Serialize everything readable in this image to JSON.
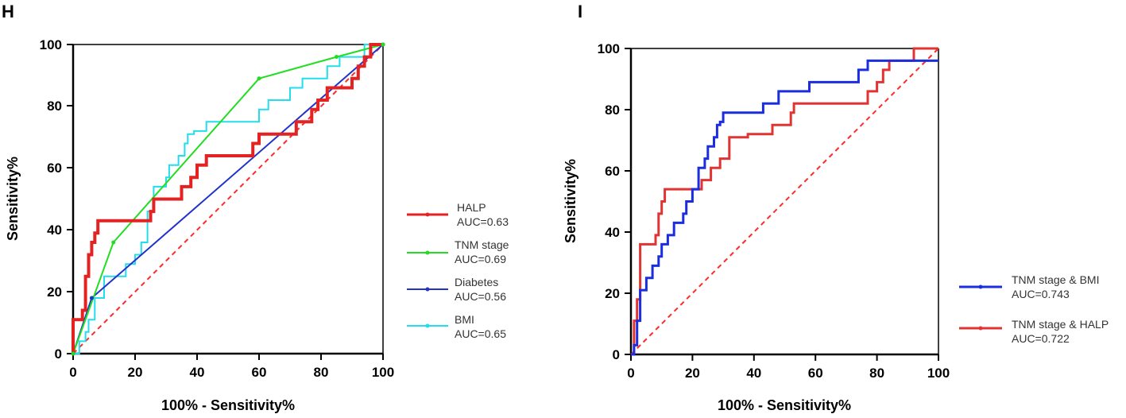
{
  "chart_data": [
    {
      "type": "line",
      "panel": "H",
      "title": "",
      "xlabel": "100% - Sensitivity%",
      "ylabel": "Sensitivity%",
      "xlim": [
        0,
        100
      ],
      "ylim": [
        0,
        100
      ],
      "xticks": [
        "0",
        "20",
        "40",
        "60",
        "80",
        "100"
      ],
      "yticks": [
        "0",
        "20",
        "40",
        "60",
        "80",
        "100"
      ],
      "grid": false,
      "legend_position": "right",
      "reference_line": {
        "color": "#ff2a2a",
        "style": "dashed",
        "x": [
          0,
          100
        ],
        "y": [
          0,
          100
        ]
      },
      "series": [
        {
          "name": "HALP",
          "auc_label": "AUC=0.63",
          "color": "#e32222",
          "width": 4,
          "x": [
            0,
            0,
            3,
            3,
            4,
            4,
            5,
            5,
            6,
            6,
            7,
            7,
            8,
            8,
            25,
            25,
            26,
            26,
            35,
            35,
            38,
            38,
            40,
            40,
            43,
            43,
            58,
            58,
            60,
            60,
            72,
            72,
            77,
            77,
            79,
            79,
            82,
            82,
            90,
            90,
            92,
            92,
            94,
            94,
            96,
            96,
            100
          ],
          "y": [
            0,
            11,
            11,
            14,
            14,
            25,
            25,
            32,
            32,
            36,
            36,
            39,
            39,
            43,
            43,
            46,
            46,
            50,
            50,
            54,
            54,
            57,
            57,
            61,
            61,
            64,
            64,
            68,
            68,
            71,
            71,
            75,
            75,
            79,
            79,
            82,
            82,
            86,
            86,
            89,
            89,
            93,
            93,
            96,
            96,
            100,
            100
          ]
        },
        {
          "name": "TNM stage",
          "auc_label": "AUC=0.69",
          "color": "#22dd22",
          "width": 2,
          "x": [
            0,
            13,
            60,
            85,
            100
          ],
          "y": [
            0,
            36,
            89,
            96,
            100
          ],
          "markers": true
        },
        {
          "name": "Diabetes",
          "auc_label": "AUC=0.56",
          "color": "#2233cc",
          "width": 2,
          "x": [
            0,
            6,
            100
          ],
          "y": [
            0,
            18,
            100
          ],
          "markers": true
        },
        {
          "name": "BMI",
          "auc_label": "AUC=0.65",
          "color": "#22ddee",
          "width": 2,
          "x": [
            0,
            2,
            2,
            4,
            4,
            5,
            5,
            7,
            7,
            10,
            10,
            17,
            17,
            20,
            20,
            22,
            22,
            24,
            24,
            26,
            26,
            30,
            30,
            31,
            31,
            34,
            34,
            36,
            36,
            37,
            37,
            39,
            39,
            43,
            43,
            60,
            60,
            63,
            63,
            70,
            70,
            74,
            74,
            77,
            77,
            82,
            82,
            86,
            86,
            94,
            94,
            100
          ],
          "y": [
            0,
            0,
            4,
            4,
            7,
            7,
            11,
            11,
            18,
            18,
            25,
            25,
            29,
            29,
            32,
            32,
            36,
            36,
            46,
            46,
            54,
            54,
            57,
            57,
            61,
            61,
            64,
            64,
            68,
            68,
            71,
            71,
            72,
            72,
            75,
            75,
            79,
            79,
            82,
            82,
            86,
            86,
            89,
            89,
            89,
            89,
            93,
            93,
            96,
            96,
            100,
            100
          ]
        }
      ]
    },
    {
      "type": "line",
      "panel": "I",
      "title": "",
      "xlabel": "100% - Sensitivity%",
      "ylabel": "Sensitivity%",
      "xlim": [
        0,
        100
      ],
      "ylim": [
        0,
        100
      ],
      "xticks": [
        "0",
        "20",
        "40",
        "60",
        "80",
        "100"
      ],
      "yticks": [
        "0",
        "20",
        "40",
        "60",
        "80",
        "100"
      ],
      "grid": false,
      "legend_position": "right",
      "reference_line": {
        "color": "#ff2a2a",
        "style": "dashed",
        "x": [
          0,
          100
        ],
        "y": [
          0,
          100
        ]
      },
      "series": [
        {
          "name": "TNM stage & BMI",
          "auc_label": "AUC=0.743",
          "color": "#1a2ee0",
          "width": 3,
          "x": [
            0,
            1,
            1,
            2,
            2,
            3,
            3,
            5,
            5,
            7,
            7,
            9,
            9,
            10,
            10,
            12,
            12,
            14,
            14,
            17,
            17,
            18,
            18,
            20,
            20,
            22,
            22,
            24,
            24,
            25,
            25,
            27,
            27,
            28,
            28,
            29,
            29,
            30,
            30,
            43,
            43,
            48,
            48,
            58,
            58,
            74,
            74,
            77,
            77,
            100
          ],
          "y": [
            0,
            0,
            3,
            3,
            11,
            11,
            21,
            21,
            25,
            25,
            29,
            29,
            32,
            32,
            36,
            36,
            39,
            39,
            43,
            43,
            46,
            46,
            50,
            50,
            54,
            54,
            61,
            61,
            64,
            64,
            68,
            68,
            71,
            71,
            75,
            75,
            76,
            76,
            79,
            79,
            82,
            82,
            86,
            86,
            89,
            89,
            93,
            93,
            96,
            96
          ]
        },
        {
          "name": "TNM stage & HALP",
          "auc_label": "AUC=0.722",
          "color": "#e23333",
          "width": 3,
          "x": [
            0,
            1,
            1,
            2,
            2,
            3,
            3,
            8,
            8,
            9,
            9,
            10,
            10,
            11,
            11,
            23,
            23,
            26,
            26,
            29,
            29,
            32,
            32,
            38,
            38,
            46,
            46,
            52,
            52,
            53,
            53,
            77,
            77,
            80,
            80,
            82,
            82,
            84,
            84,
            92,
            92,
            100
          ],
          "y": [
            0,
            0,
            11,
            11,
            18,
            18,
            36,
            36,
            39,
            39,
            46,
            46,
            50,
            50,
            54,
            54,
            57,
            57,
            61,
            61,
            64,
            64,
            71,
            71,
            72,
            72,
            75,
            75,
            79,
            79,
            82,
            82,
            86,
            86,
            89,
            89,
            93,
            93,
            96,
            96,
            100,
            100
          ]
        }
      ]
    }
  ]
}
